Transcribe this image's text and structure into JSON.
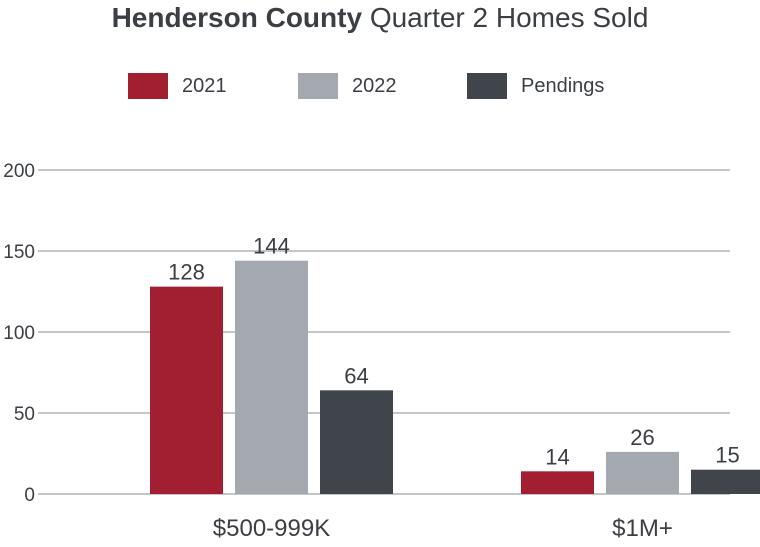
{
  "title_bold": "Henderson County",
  "title_rest": "Quarter 2 Homes Sold",
  "colors": {
    "2021": "#a11f31",
    "2022": "#a3a9ae",
    "Pendings": "#3f454b",
    "grid": "#8a8d90"
  },
  "chart_data": {
    "type": "bar",
    "categories": [
      "$500-999K",
      "$1M+"
    ],
    "series": [
      {
        "name": "2021",
        "values": [
          128,
          14
        ]
      },
      {
        "name": "2022",
        "values": [
          144,
          26
        ]
      },
      {
        "name": "Pendings",
        "values": [
          64,
          15
        ]
      }
    ],
    "y_ticks": [
      0,
      50,
      100,
      150,
      200
    ],
    "ylim": [
      0,
      200
    ],
    "grid": true,
    "legend_position": "top"
  },
  "tick_labels": [
    "0",
    "50",
    "100",
    "150",
    "200"
  ],
  "data_labels": [
    [
      "128",
      "14"
    ],
    [
      "144",
      "26"
    ],
    [
      "64",
      "15"
    ]
  ]
}
